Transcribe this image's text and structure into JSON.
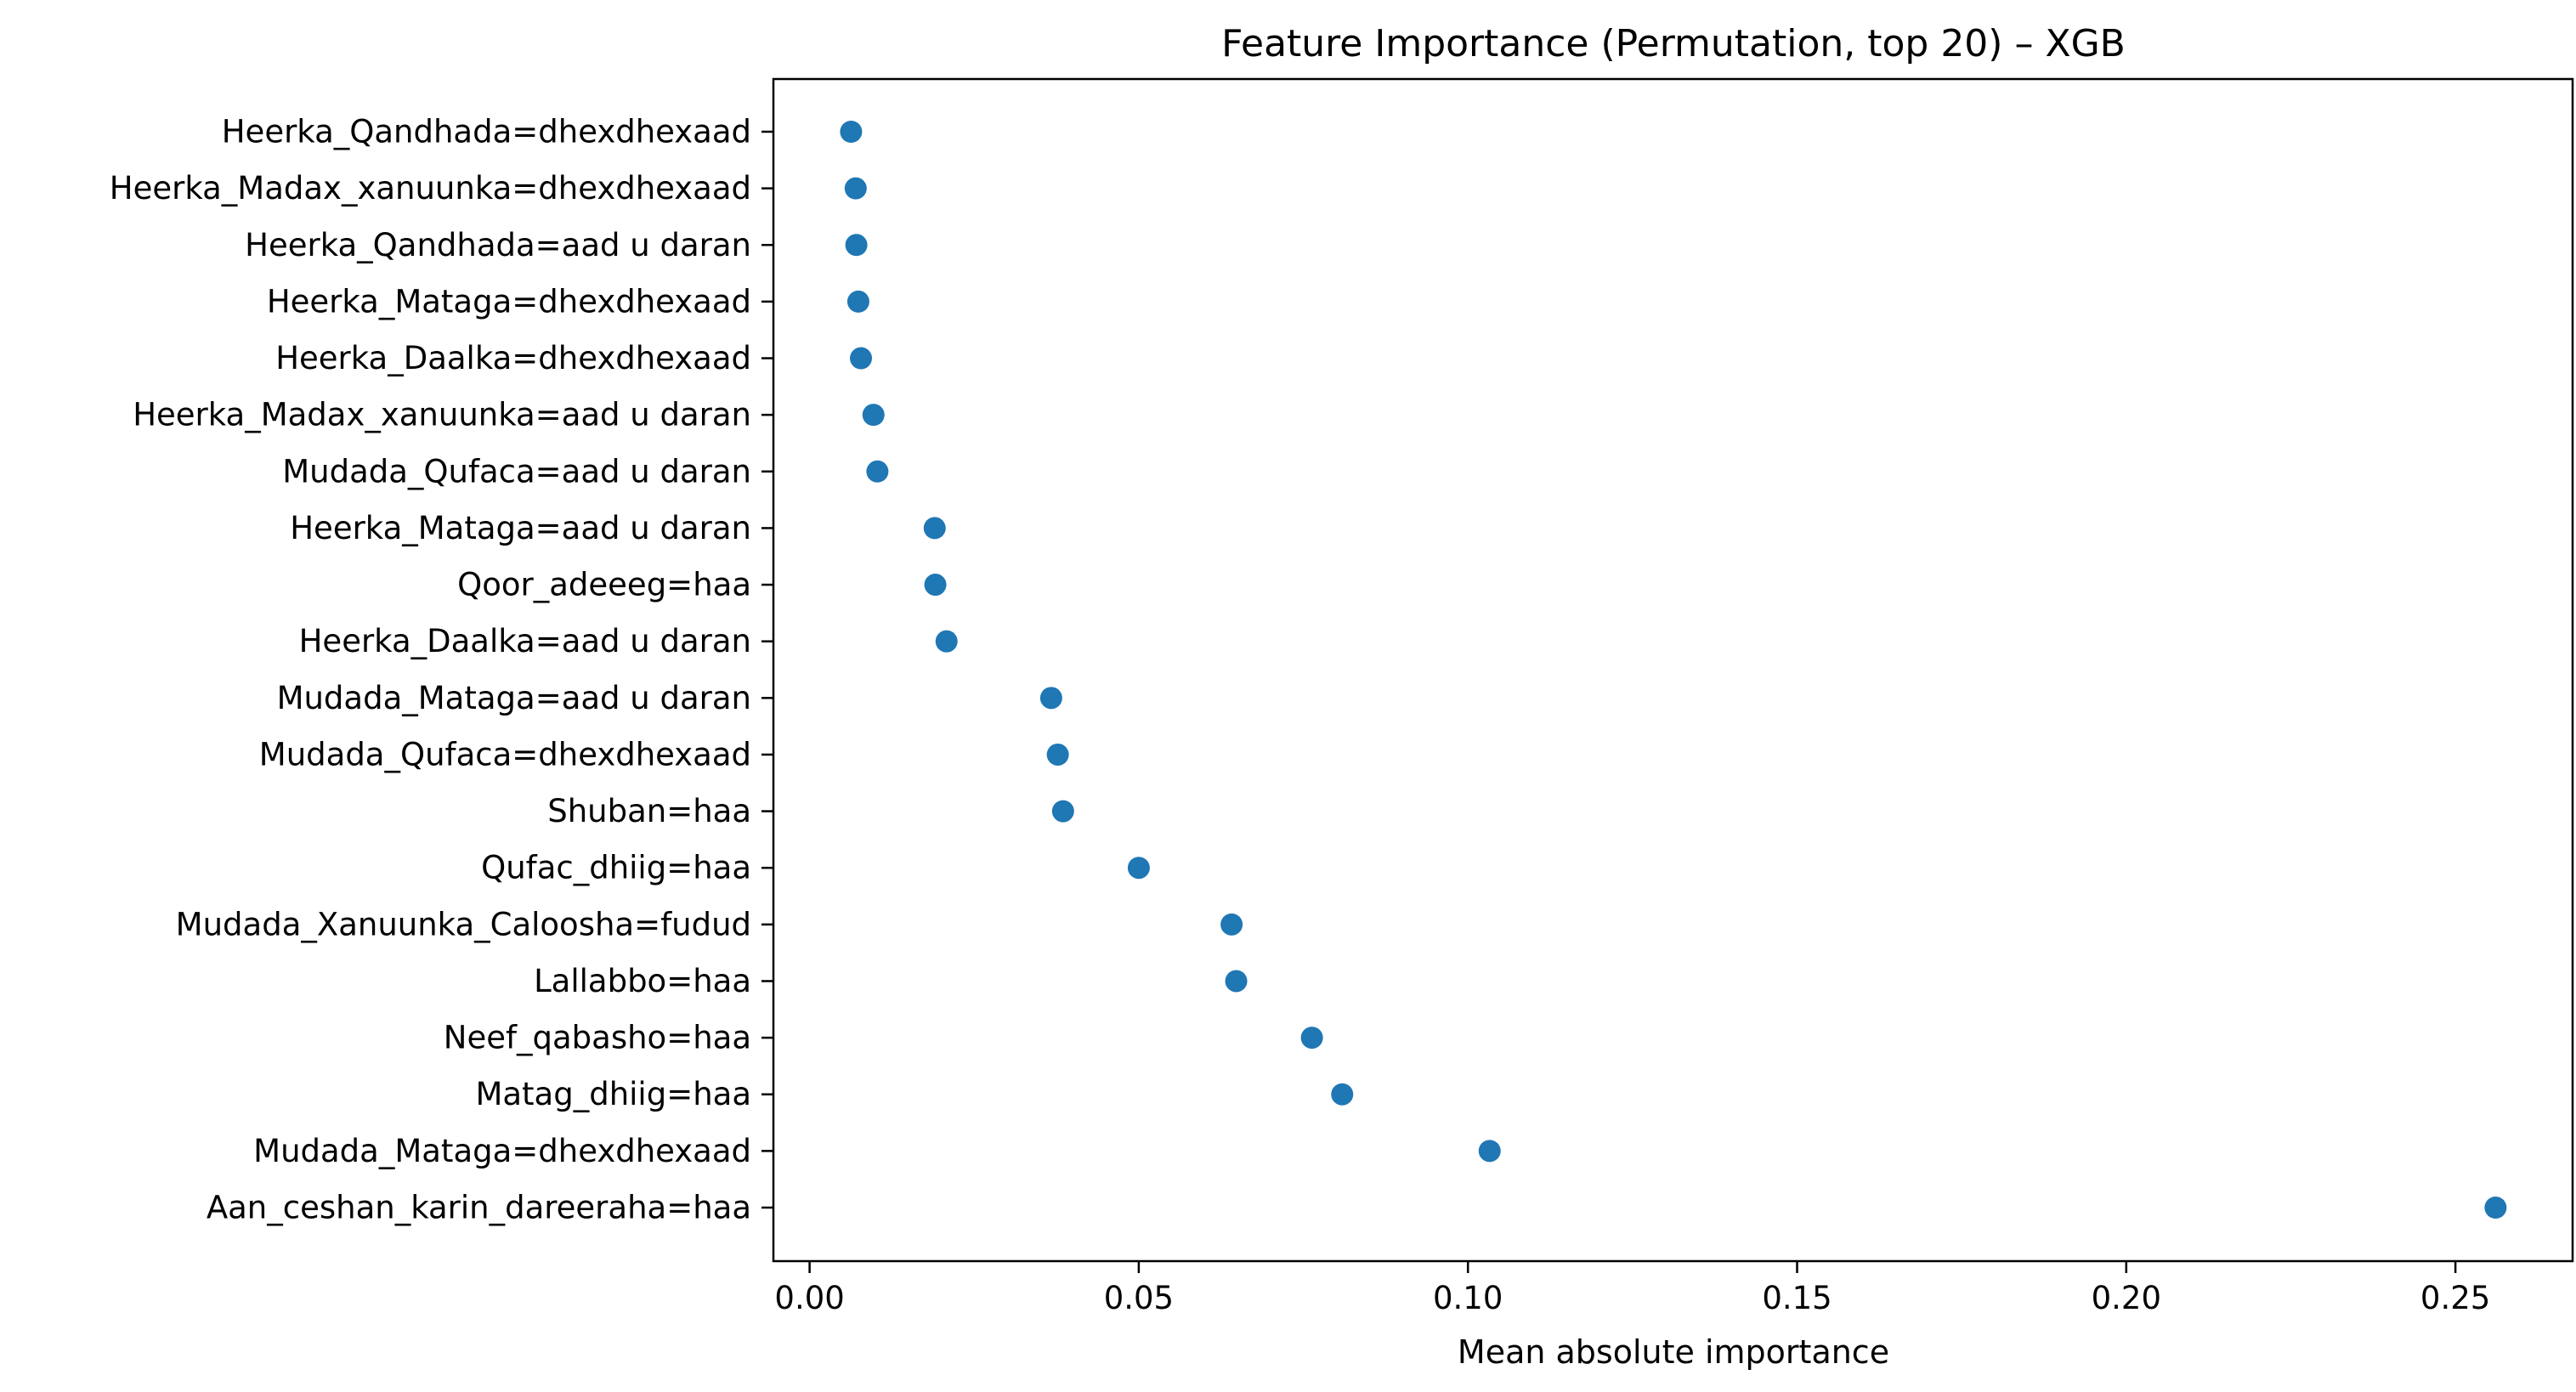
{
  "chart_data": {
    "type": "scatter",
    "title": "Feature Importance (Permutation, top 20) – XGB",
    "xlabel": "Mean absolute importance",
    "ylabel": "",
    "xlim": [
      -0.0055,
      0.2678
    ],
    "xticks": [
      0.0,
      0.05,
      0.1,
      0.15,
      0.2,
      0.25
    ],
    "xtick_labels": [
      "0.00",
      "0.05",
      "0.10",
      "0.15",
      "0.20",
      "0.25"
    ],
    "grid": false,
    "marker_color": "#1f77b4",
    "categories": [
      "Heerka_Qandhada=dhexdhexaad",
      "Heerka_Madax_xanuunka=dhexdhexaad",
      "Heerka_Qandhada=aad u daran",
      "Heerka_Mataga=dhexdhexaad",
      "Heerka_Daalka=dhexdhexaad",
      "Heerka_Madax_xanuunka=aad u daran",
      "Mudada_Qufaca=aad u daran",
      "Heerka_Mataga=aad u daran",
      "Qoor_adeeeg=haa",
      "Heerka_Daalka=aad u daran",
      "Mudada_Mataga=aad u daran",
      "Mudada_Qufaca=dhexdhexaad",
      "Shuban=haa",
      "Qufac_dhiig=haa",
      "Mudada_Xanuunka_Caloosha=fudud",
      "Lallabbo=haa",
      "Neef_qabasho=haa",
      "Matag_dhiig=haa",
      "Mudada_Mataga=dhexdhexaad",
      "Aan_ceshan_karin_dareeraha=haa"
    ],
    "values": [
      0.0063,
      0.007,
      0.0071,
      0.0074,
      0.0078,
      0.0097,
      0.0103,
      0.019,
      0.0191,
      0.0208,
      0.0367,
      0.0377,
      0.0385,
      0.05,
      0.0641,
      0.0648,
      0.0763,
      0.0809,
      0.1033,
      0.2561
    ]
  }
}
